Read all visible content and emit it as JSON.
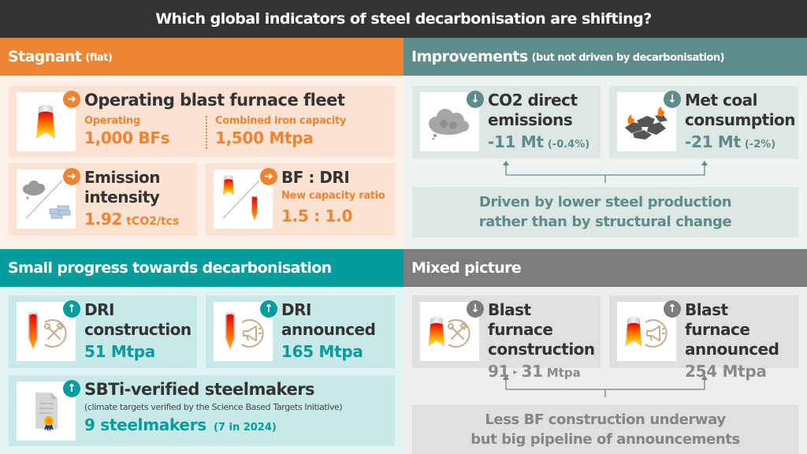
{
  "title": "Which global indicators of steel decarbonisation are shifting?",
  "colors": {
    "stagnant": "#ef8430",
    "improvements": "#5e8c8a",
    "small_progress": "#049c9c",
    "mixed": "#7d7d7d",
    "title_bar": "#333333"
  },
  "stagnant": {
    "heading": "Stagnant",
    "heading_sub": "(flat)",
    "trend_icon": "arrow-right-icon",
    "fleet": {
      "title": "Operating blast furnace fleet",
      "icon": "blast-furnace-icon",
      "operating_label": "Operating",
      "operating_value": "1,000 BFs",
      "capacity_label": "Combined iron capacity",
      "capacity_value": "1,500 Mtpa"
    },
    "emission_intensity": {
      "title_line1": "Emission",
      "title_line2": "intensity",
      "icon": "cloud-and-steel-bars-icon",
      "value": "1.92",
      "unit": "tCO2/tcs"
    },
    "bf_dri": {
      "title": "BF : DRI",
      "icon": "bf-vs-dri-icon",
      "label": "New capacity ratio",
      "value": "1.5 : 1.0"
    }
  },
  "improvements": {
    "heading": "Improvements",
    "heading_sub": "(but not driven by decarbonisation)",
    "trend_icon": "arrow-down-icon",
    "co2": {
      "title_line1": "CO2 direct",
      "title_line2": "emissions",
      "icon": "smoke-cloud-icon",
      "value": "-11 Mt",
      "pct": "(-0.4%)"
    },
    "coal": {
      "title_line1": "Met coal",
      "title_line2": "consumption",
      "icon": "burning-coal-icon",
      "value": "-21 Mt",
      "pct": "(-2%)"
    },
    "note_line1": "Driven by lower steel production",
    "note_line2": "rather than by structural change"
  },
  "small_progress": {
    "heading": "Small progress towards decarbonisation",
    "trend_icon": "arrow-up-icon",
    "dri_construction": {
      "title_line1": "DRI",
      "title_line2": "construction",
      "icon": "dri-construction-icon",
      "value": "51 Mtpa"
    },
    "dri_announced": {
      "title_line1": "DRI",
      "title_line2": "announced",
      "icon": "dri-announced-icon",
      "value": "165 Mtpa"
    },
    "sbti": {
      "title": "SBTi-verified steelmakers",
      "icon": "certificate-icon",
      "subtitle": "(climate targets verified by the Science Based Targets Initiative)",
      "value": "9 steelmakers",
      "note": "(7 in 2024)"
    }
  },
  "mixed": {
    "heading": "Mixed picture",
    "bf_construction": {
      "title_line1": "Blast furnace",
      "title_line2": "construction",
      "icon": "bf-construction-icon",
      "trend_icon": "arrow-down-icon",
      "value_from": "91",
      "arrow": "▸",
      "value_to": "31",
      "unit": "Mtpa"
    },
    "bf_announced": {
      "title_line1": "Blast furnace",
      "title_line2": "announced",
      "icon": "bf-announced-icon",
      "trend_icon": "arrow-up-icon",
      "value": "254 Mtpa"
    },
    "note_line1": "Less BF construction underway",
    "note_line2": "but big pipeline of announcements"
  }
}
